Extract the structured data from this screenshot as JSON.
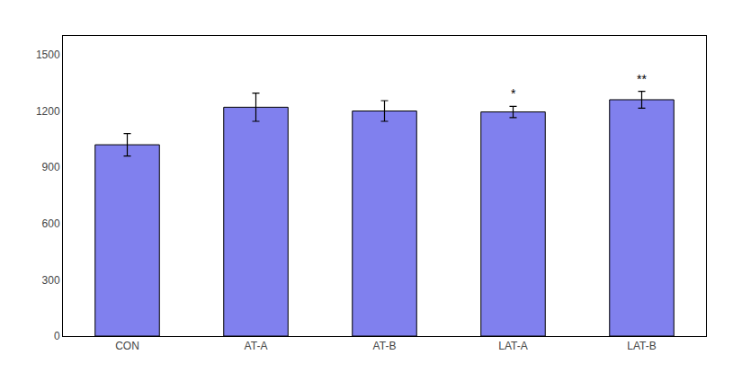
{
  "chart_data": {
    "type": "bar",
    "categories": [
      "CON",
      "AT-A",
      "AT-B",
      "LAT-A",
      "LAT-B"
    ],
    "values": [
      1020,
      1220,
      1200,
      1195,
      1260
    ],
    "errors": [
      60,
      75,
      55,
      30,
      45
    ],
    "color": "#8080ee",
    "annotations": [
      {
        "category": "LAT-A",
        "text": "*"
      },
      {
        "category": "LAT-B",
        "text": "**"
      }
    ],
    "ylim": [
      0,
      1600
    ],
    "yticks": [
      0,
      300,
      600,
      900,
      1200,
      1500
    ],
    "grid": false
  }
}
